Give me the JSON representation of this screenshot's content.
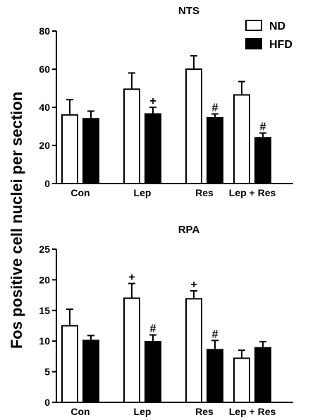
{
  "ylabel": "Fos positive cell nuclei per section",
  "legend": {
    "items": [
      {
        "label": "ND",
        "fill": "#ffffff"
      },
      {
        "label": "HFD",
        "fill": "#000000"
      }
    ],
    "placement": "top-right"
  },
  "chart_data": [
    {
      "type": "bar",
      "title": "NTS",
      "categories": [
        "Con",
        "Lep",
        "Res",
        "Lep + Res"
      ],
      "series": [
        {
          "name": "ND",
          "color": "#ffffff",
          "values": [
            36,
            49.5,
            60,
            46.5
          ],
          "errors": [
            8,
            8.5,
            7,
            7
          ]
        },
        {
          "name": "HFD",
          "color": "#000000",
          "values": [
            34,
            36.5,
            34.5,
            24
          ],
          "errors": [
            4,
            3.5,
            2,
            2.5
          ]
        }
      ],
      "ylim": [
        0,
        80
      ],
      "yticks": [
        0,
        20,
        40,
        60,
        80
      ],
      "annotations": [
        {
          "category": 1,
          "series": 1,
          "text": "+"
        },
        {
          "category": 2,
          "series": 1,
          "text": "#"
        },
        {
          "category": 3,
          "series": 1,
          "text": "#"
        }
      ]
    },
    {
      "type": "bar",
      "title": "RPA",
      "categories": [
        "Con",
        "Lep",
        "Res",
        "Lep + Res"
      ],
      "series": [
        {
          "name": "ND",
          "color": "#ffffff",
          "values": [
            12.5,
            17,
            16.9,
            7.2
          ],
          "errors": [
            2.7,
            2.4,
            1.3,
            1.3
          ]
        },
        {
          "name": "HFD",
          "color": "#000000",
          "values": [
            10.1,
            9.9,
            8.6,
            8.9
          ],
          "errors": [
            0.8,
            1.1,
            1.5,
            1.0
          ]
        }
      ],
      "ylim": [
        0,
        25
      ],
      "yticks": [
        0,
        5,
        10,
        15,
        20,
        25
      ],
      "annotations": [
        {
          "category": 1,
          "series": 0,
          "text": "+"
        },
        {
          "category": 1,
          "series": 1,
          "text": "#"
        },
        {
          "category": 2,
          "series": 0,
          "text": "+"
        },
        {
          "category": 2,
          "series": 1,
          "text": "#"
        }
      ]
    }
  ]
}
